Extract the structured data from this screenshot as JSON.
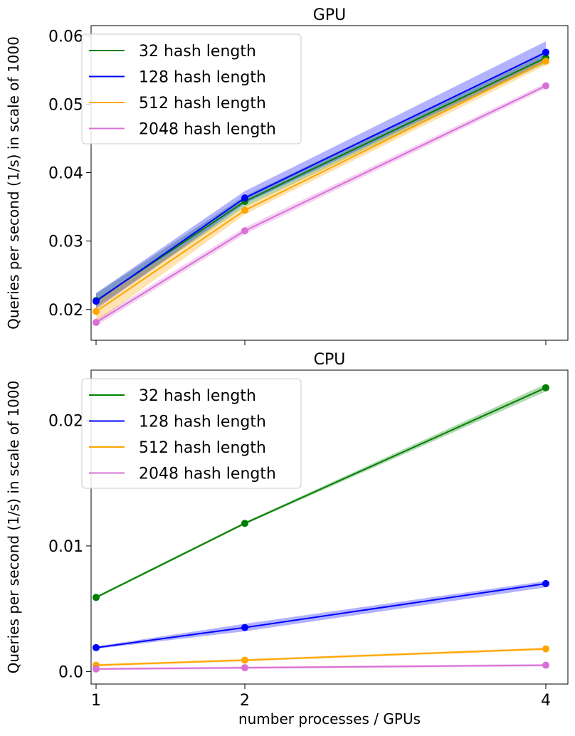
{
  "chart_data": [
    {
      "type": "line",
      "title": "GPU",
      "ylabel": "Queries per second (1/s) in scale of 1000",
      "xlabel": "",
      "x": [
        1,
        2,
        4
      ],
      "ylim": [
        0.0155,
        0.0615
      ],
      "yticks": [
        0.02,
        0.03,
        0.04,
        0.05,
        0.06
      ],
      "ytick_labels": [
        "0.02",
        "0.03",
        "0.04",
        "0.05",
        "0.06"
      ],
      "xticks": [
        1,
        2,
        4
      ],
      "xtick_labels": [
        "",
        "",
        ""
      ],
      "legend_position": "top-left",
      "series": [
        {
          "name": "32 hash length",
          "color": "#008000",
          "values": [
            0.0213,
            0.0358,
            0.0568
          ],
          "band": [
            [
              0.0203,
              0.0223
            ],
            [
              0.035,
              0.0366
            ],
            [
              0.056,
              0.0576
            ]
          ]
        },
        {
          "name": "128 hash length",
          "color": "#0000ff",
          "values": [
            0.0212,
            0.0363,
            0.0576
          ],
          "band": [
            [
              0.02,
              0.0224
            ],
            [
              0.0355,
              0.0373
            ],
            [
              0.0562,
              0.0592
            ]
          ]
        },
        {
          "name": "512 hash length",
          "color": "#ffa500",
          "values": [
            0.0197,
            0.0345,
            0.0563
          ],
          "band": [
            [
              0.0181,
              0.0213
            ],
            [
              0.0339,
              0.0351
            ],
            [
              0.0557,
              0.0569
            ]
          ]
        },
        {
          "name": "2048 hash length",
          "color": "#da70d6",
          "values": [
            0.0181,
            0.0315,
            0.0527
          ],
          "band": [
            [
              0.0176,
              0.0186
            ],
            [
              0.031,
              0.032
            ],
            [
              0.0523,
              0.0531
            ]
          ]
        }
      ]
    },
    {
      "type": "line",
      "title": "CPU",
      "ylabel": "Queries per second (1/s) in scale of 1000",
      "xlabel": "number processes / GPUs",
      "x": [
        1,
        2,
        4
      ],
      "ylim": [
        -0.001,
        0.024
      ],
      "yticks": [
        0.0,
        0.01,
        0.02
      ],
      "ytick_labels": [
        "0.0",
        "0.01",
        "0.02"
      ],
      "xticks": [
        1,
        2,
        4
      ],
      "xtick_labels": [
        "1",
        "2",
        "4"
      ],
      "legend_position": "top-left",
      "series": [
        {
          "name": "32 hash length",
          "color": "#008000",
          "values": [
            0.0059,
            0.0118,
            0.0226
          ],
          "band": [
            [
              0.0058,
              0.006
            ],
            [
              0.0117,
              0.0119
            ],
            [
              0.0223,
              0.0229
            ]
          ]
        },
        {
          "name": "128 hash length",
          "color": "#0000ff",
          "values": [
            0.0019,
            0.0035,
            0.007
          ],
          "band": [
            [
              0.0018,
              0.002
            ],
            [
              0.0032,
              0.0038
            ],
            [
              0.0067,
              0.0072
            ]
          ]
        },
        {
          "name": "512 hash length",
          "color": "#ffa500",
          "values": [
            0.0005,
            0.0009,
            0.0018
          ],
          "band": [
            [
              0.0004,
              0.0006
            ],
            [
              0.0008,
              0.001
            ],
            [
              0.0017,
              0.0019
            ]
          ]
        },
        {
          "name": "2048 hash length",
          "color": "#da70d6",
          "values": [
            0.0002,
            0.0003,
            0.0005
          ],
          "band": [
            [
              0.0001,
              0.0003
            ],
            [
              0.0002,
              0.0004
            ],
            [
              0.0004,
              0.0006
            ]
          ]
        }
      ]
    }
  ]
}
